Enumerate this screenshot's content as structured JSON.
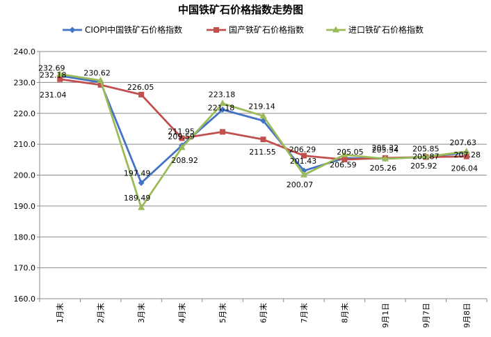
{
  "chart_data": {
    "type": "line",
    "title": "中国铁矿石价格指数走势图",
    "xlabel": "",
    "ylabel": "",
    "ylim": [
      160,
      240
    ],
    "yticks": [
      "160.0",
      "170.0",
      "180.0",
      "190.0",
      "200.0",
      "210.0",
      "220.0",
      "230.0",
      "240.0"
    ],
    "categories": [
      "1月末",
      "2月末",
      "3月末",
      "4月末",
      "5月末",
      "6月末",
      "7月末",
      "8月末",
      "9月1日",
      "9月7日",
      "9月8日"
    ],
    "grid": true,
    "legend_position": "top",
    "series": [
      {
        "name": "CIOPI中国铁矿石价格指数",
        "color": "#4472C4",
        "marker": "diamond",
        "values": [
          232.18,
          230.0,
          197.49,
          209.59,
          221.18,
          217.6,
          201.43,
          205.5,
          205.32,
          205.87,
          207.28
        ],
        "labels": [
          "232.18",
          "",
          "197.49",
          "209.59",
          "221.18",
          "",
          "201.43",
          "",
          "205.32",
          "205.87",
          "207.28"
        ]
      },
      {
        "name": "国产铁矿石价格指数",
        "color": "#C0504D",
        "marker": "square",
        "values": [
          231.04,
          229.2,
          226.05,
          211.95,
          214.0,
          211.55,
          206.29,
          205.05,
          205.54,
          205.85,
          206.04
        ],
        "labels": [
          "231.04",
          "",
          "226.05",
          "211.95",
          "",
          "211.55",
          "206.29",
          "205.05",
          "205.54",
          "205.85",
          "206.04"
        ]
      },
      {
        "name": "进口铁矿石价格指数",
        "color": "#9BBB59",
        "marker": "triangle",
        "values": [
          232.69,
          230.62,
          189.49,
          208.92,
          223.18,
          219.14,
          200.07,
          206.59,
          205.26,
          205.92,
          207.63
        ],
        "labels": [
          "232.69",
          "230.62",
          "189.49",
          "208.92",
          "223.18",
          "219.14",
          "200.07",
          "206.59",
          "205.26",
          "205.92",
          "207.63"
        ]
      }
    ]
  }
}
